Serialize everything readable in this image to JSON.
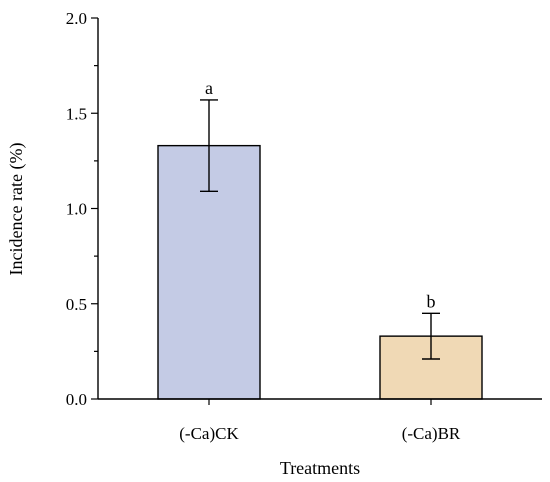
{
  "chart_data": {
    "type": "bar",
    "title": "",
    "xlabel": "Treatments",
    "ylabel": "Incidence rate (%)",
    "categories": [
      "(-Ca)CK",
      "(-Ca)BR"
    ],
    "values": [
      1.33,
      0.33
    ],
    "errors": [
      0.24,
      0.12
    ],
    "significance": [
      "a",
      "b"
    ],
    "colors": [
      "#c4cbe5",
      "#f0d9b5"
    ],
    "ylim": [
      0,
      2.0
    ],
    "yticks": [
      0.0,
      0.5,
      1.0,
      1.5,
      2.0
    ],
    "ytick_labels": [
      "0.0",
      "0.5",
      "1.0",
      "1.5",
      "2.0"
    ],
    "grid": false
  }
}
